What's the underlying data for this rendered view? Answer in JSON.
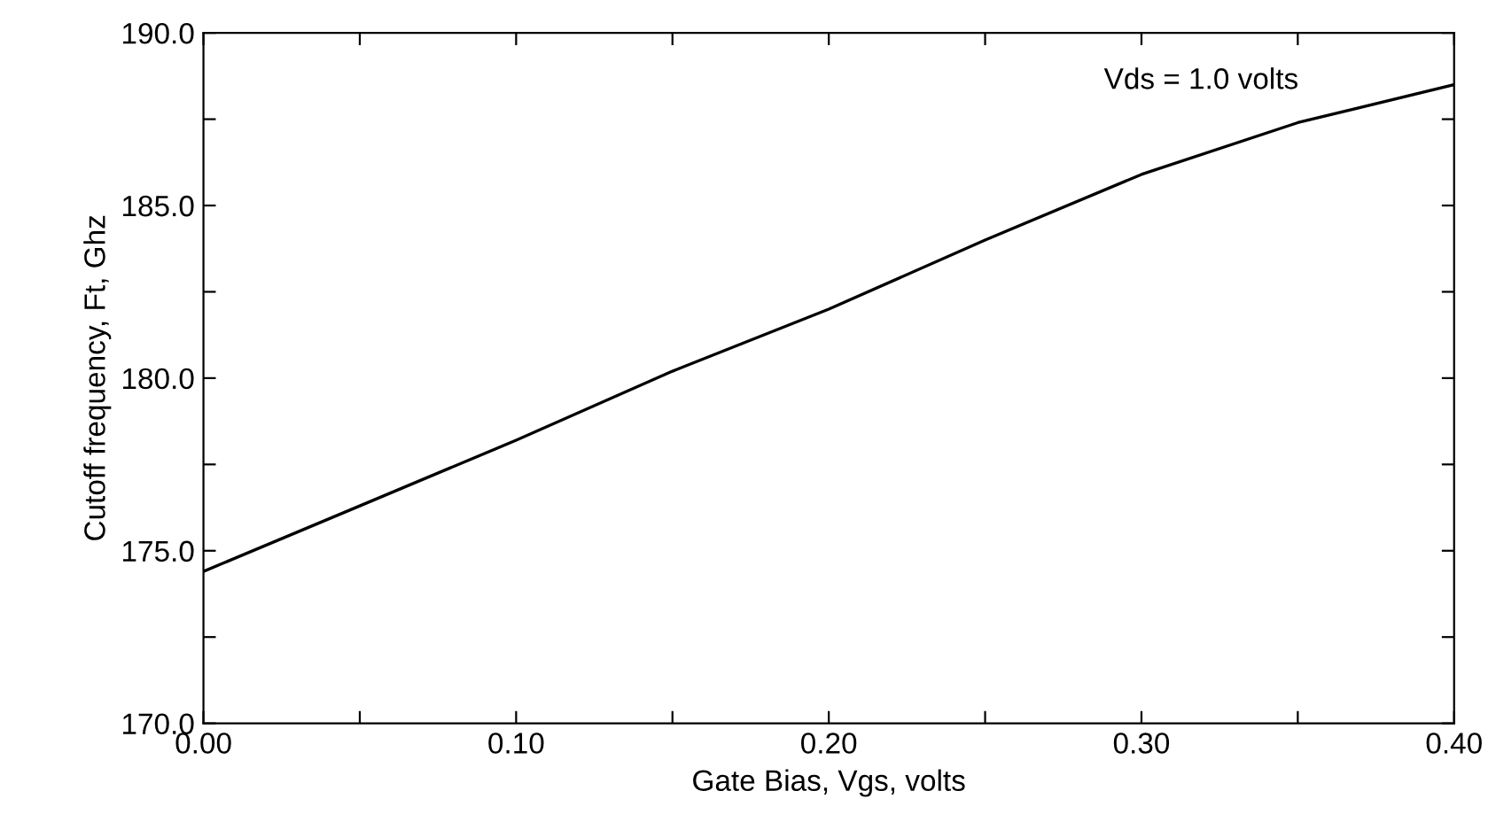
{
  "chart_data": {
    "type": "line",
    "xlabel": "Gate Bias, Vgs, volts",
    "ylabel": "Cutoff frequency, Ft, Ghz",
    "x": [
      0.0,
      0.05,
      0.1,
      0.15,
      0.2,
      0.25,
      0.3,
      0.35,
      0.4
    ],
    "series": [
      {
        "color": "#000000",
        "values": [
          174.4,
          176.3,
          178.2,
          180.2,
          182.0,
          184.0,
          185.9,
          187.4,
          188.5
        ]
      }
    ],
    "xlim": [
      0.0,
      0.4
    ],
    "xticks": [
      {
        "value": 0.0,
        "label": "0.00"
      },
      {
        "value": 0.05,
        "label": null
      },
      {
        "value": 0.1,
        "label": "0.10"
      },
      {
        "value": 0.15,
        "label": null
      },
      {
        "value": 0.2,
        "label": "0.20"
      },
      {
        "value": 0.25,
        "label": null
      },
      {
        "value": 0.3,
        "label": "0.30"
      },
      {
        "value": 0.35,
        "label": null
      },
      {
        "value": 0.4,
        "label": "0.40"
      }
    ],
    "ylim": [
      170,
      190
    ],
    "yticks": [
      {
        "value": 170,
        "label": "170.0"
      },
      {
        "value": 172.5,
        "label": null
      },
      {
        "value": 175,
        "label": "175.0"
      },
      {
        "value": 177.5,
        "label": null
      },
      {
        "value": 180,
        "label": "180.0"
      },
      {
        "value": 182.5,
        "label": null
      },
      {
        "value": 185,
        "label": "185.0"
      },
      {
        "value": 187.5,
        "label": null
      },
      {
        "value": 190,
        "label": "190.0"
      }
    ],
    "annotations": [
      "Vds = 1.0 volts"
    ],
    "grid": false,
    "marker": "none",
    "line_style": "solid"
  }
}
